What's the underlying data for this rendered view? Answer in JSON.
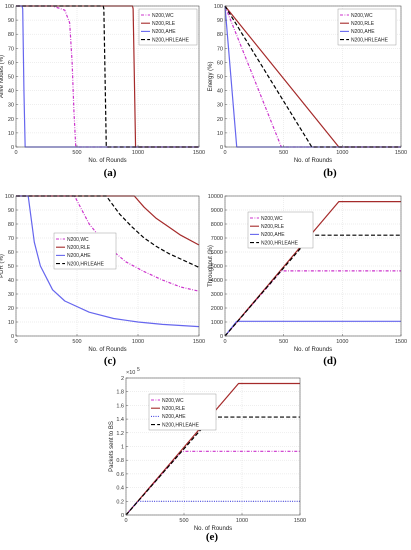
{
  "panel_labels": [
    "(a)",
    "(b)",
    "(c)",
    "(d)",
    "(e)"
  ],
  "colors": {
    "N200,WC": "#cc33cc",
    "N200,RLE": "#a52a2a",
    "N200,AHE": "#6666ee",
    "N200,HRLEAHE": "#000000"
  },
  "chart_data": [
    {
      "type": "line",
      "panel": "(a)",
      "title": "",
      "xlabel": "No. of Rounds",
      "ylabel": "Alive Nodes (%)",
      "xlim": [
        0,
        1500
      ],
      "ylim": [
        0,
        100
      ],
      "xticks": [
        0,
        500,
        1000,
        1500
      ],
      "yticks": [
        0,
        10,
        20,
        30,
        40,
        50,
        60,
        70,
        80,
        90,
        100
      ],
      "grid": true,
      "legend": "top-right",
      "series": [
        {
          "name": "N200,WC",
          "color": "#cc33cc",
          "dash": "dashdot",
          "x": [
            0,
            300,
            400,
            440,
            460,
            475,
            490,
            1500
          ],
          "y": [
            100,
            100,
            97,
            88,
            60,
            25,
            0,
            0
          ]
        },
        {
          "name": "N200,RLE",
          "color": "#a52a2a",
          "dash": "solid",
          "x": [
            0,
            955,
            960,
            970,
            980,
            1500
          ],
          "y": [
            100,
            100,
            98,
            50,
            0,
            0
          ]
        },
        {
          "name": "N200,AHE",
          "color": "#6666ee",
          "dash": "solid",
          "x": [
            0,
            50,
            55,
            65,
            75,
            1500
          ],
          "y": [
            100,
            100,
            98,
            40,
            0,
            0
          ]
        },
        {
          "name": "N200,HRLEAHE",
          "color": "#000000",
          "dash": "dashed",
          "x": [
            0,
            715,
            720,
            730,
            740,
            1500
          ],
          "y": [
            100,
            100,
            98,
            50,
            0,
            0
          ]
        }
      ]
    },
    {
      "type": "line",
      "panel": "(b)",
      "title": "",
      "xlabel": "No. of Rounds",
      "ylabel": "Energy (%)",
      "xlim": [
        0,
        1500
      ],
      "ylim": [
        0,
        100
      ],
      "xticks": [
        0,
        500,
        1000,
        1500
      ],
      "yticks": [
        0,
        10,
        20,
        30,
        40,
        50,
        60,
        70,
        80,
        90,
        100
      ],
      "grid": true,
      "legend": "top-right",
      "series": [
        {
          "name": "N200,WC",
          "color": "#cc33cc",
          "dash": "dashdot",
          "x": [
            0,
            480,
            1500
          ],
          "y": [
            100,
            0,
            0
          ]
        },
        {
          "name": "N200,RLE",
          "color": "#a52a2a",
          "dash": "solid",
          "x": [
            0,
            970,
            1500
          ],
          "y": [
            100,
            0,
            0
          ]
        },
        {
          "name": "N200,AHE",
          "color": "#6666ee",
          "dash": "solid",
          "x": [
            0,
            100,
            1500
          ],
          "y": [
            100,
            0,
            0
          ]
        },
        {
          "name": "N200,HRLEAHE",
          "color": "#000000",
          "dash": "dashed",
          "x": [
            0,
            740,
            1500
          ],
          "y": [
            100,
            0,
            0
          ]
        }
      ]
    },
    {
      "type": "line",
      "panel": "(c)",
      "title": "",
      "xlabel": "No. of Rounds",
      "ylabel": "PDR (%)",
      "xlim": [
        0,
        1500
      ],
      "ylim": [
        0,
        100
      ],
      "xticks": [
        0,
        500,
        1000,
        1500
      ],
      "yticks": [
        0,
        10,
        20,
        30,
        40,
        50,
        60,
        70,
        80,
        90,
        100
      ],
      "grid": true,
      "legend": "middle-left",
      "series": [
        {
          "name": "N200,WC",
          "color": "#cc33cc",
          "dash": "dashdot",
          "x": [
            0,
            480,
            600,
            750,
            900,
            1050,
            1200,
            1350,
            1500
          ],
          "y": [
            100,
            100,
            80,
            64,
            53,
            46,
            40,
            35,
            32
          ]
        },
        {
          "name": "N200,RLE",
          "color": "#a52a2a",
          "dash": "solid",
          "x": [
            0,
            970,
            1050,
            1150,
            1250,
            1350,
            1500
          ],
          "y": [
            100,
            100,
            92,
            84,
            78,
            72,
            65
          ]
        },
        {
          "name": "N200,AHE",
          "color": "#6666ee",
          "dash": "solid",
          "x": [
            0,
            100,
            150,
            200,
            300,
            400,
            600,
            800,
            1000,
            1200,
            1500
          ],
          "y": [
            100,
            100,
            67,
            50,
            33,
            25,
            17,
            12.5,
            10,
            8.3,
            6.7
          ]
        },
        {
          "name": "N200,HRLEAHE",
          "color": "#000000",
          "dash": "dashed",
          "x": [
            0,
            740,
            850,
            950,
            1050,
            1150,
            1250,
            1350,
            1500
          ],
          "y": [
            100,
            100,
            87,
            78,
            70,
            64,
            59,
            55,
            49
          ]
        }
      ]
    },
    {
      "type": "line",
      "panel": "(d)",
      "title": "",
      "xlabel": "No. of Rounds",
      "ylabel": "Throughput (%)",
      "xlim": [
        0,
        1500
      ],
      "ylim": [
        0,
        10000
      ],
      "xticks": [
        0,
        500,
        1000,
        1500
      ],
      "yticks": [
        0,
        1000,
        2000,
        3000,
        4000,
        5000,
        6000,
        7000,
        8000,
        9000,
        10000
      ],
      "grid": true,
      "legend": "top-left",
      "series": [
        {
          "name": "N200,WC",
          "color": "#cc33cc",
          "dash": "dashdot",
          "x": [
            0,
            480,
            1500
          ],
          "y": [
            0,
            4650,
            4650
          ]
        },
        {
          "name": "N200,RLE",
          "color": "#a52a2a",
          "dash": "solid",
          "x": [
            0,
            970,
            1500
          ],
          "y": [
            0,
            9600,
            9600
          ]
        },
        {
          "name": "N200,AHE",
          "color": "#6666ee",
          "dash": "solid",
          "x": [
            0,
            100,
            1500
          ],
          "y": [
            0,
            1050,
            1050
          ]
        },
        {
          "name": "N200,HRLEAHE",
          "color": "#000000",
          "dash": "dashed",
          "x": [
            0,
            740,
            1500
          ],
          "y": [
            0,
            7200,
            7200
          ]
        }
      ]
    },
    {
      "type": "line",
      "panel": "(e)",
      "title": "",
      "xlabel": "No. of Rounds",
      "ylabel": "Packets sent to BS",
      "multiplier": "×10",
      "multiplier_exp": "5",
      "xlim": [
        0,
        1500
      ],
      "ylim": [
        0,
        2
      ],
      "xticks": [
        0,
        500,
        1000,
        1500
      ],
      "yticks": [
        0,
        0.2,
        0.4,
        0.6,
        0.8,
        1,
        1.2,
        1.4,
        1.6,
        1.8,
        2
      ],
      "grid": true,
      "legend": "top-left",
      "series": [
        {
          "name": "N200,WC",
          "color": "#cc33cc",
          "dash": "dashdot",
          "x": [
            0,
            480,
            1500
          ],
          "y": [
            0,
            0.93,
            0.93
          ]
        },
        {
          "name": "N200,RLE",
          "color": "#a52a2a",
          "dash": "solid",
          "x": [
            0,
            970,
            1500
          ],
          "y": [
            0,
            1.92,
            1.92
          ]
        },
        {
          "name": "N200,AHE",
          "color": "#3333dd",
          "dash": "dotted",
          "x": [
            0,
            100,
            1500
          ],
          "y": [
            0,
            0.2,
            0.2
          ]
        },
        {
          "name": "N200,HRLEAHE",
          "color": "#000000",
          "dash": "dashed",
          "x": [
            0,
            740,
            1500
          ],
          "y": [
            0,
            1.43,
            1.43
          ]
        }
      ]
    }
  ]
}
